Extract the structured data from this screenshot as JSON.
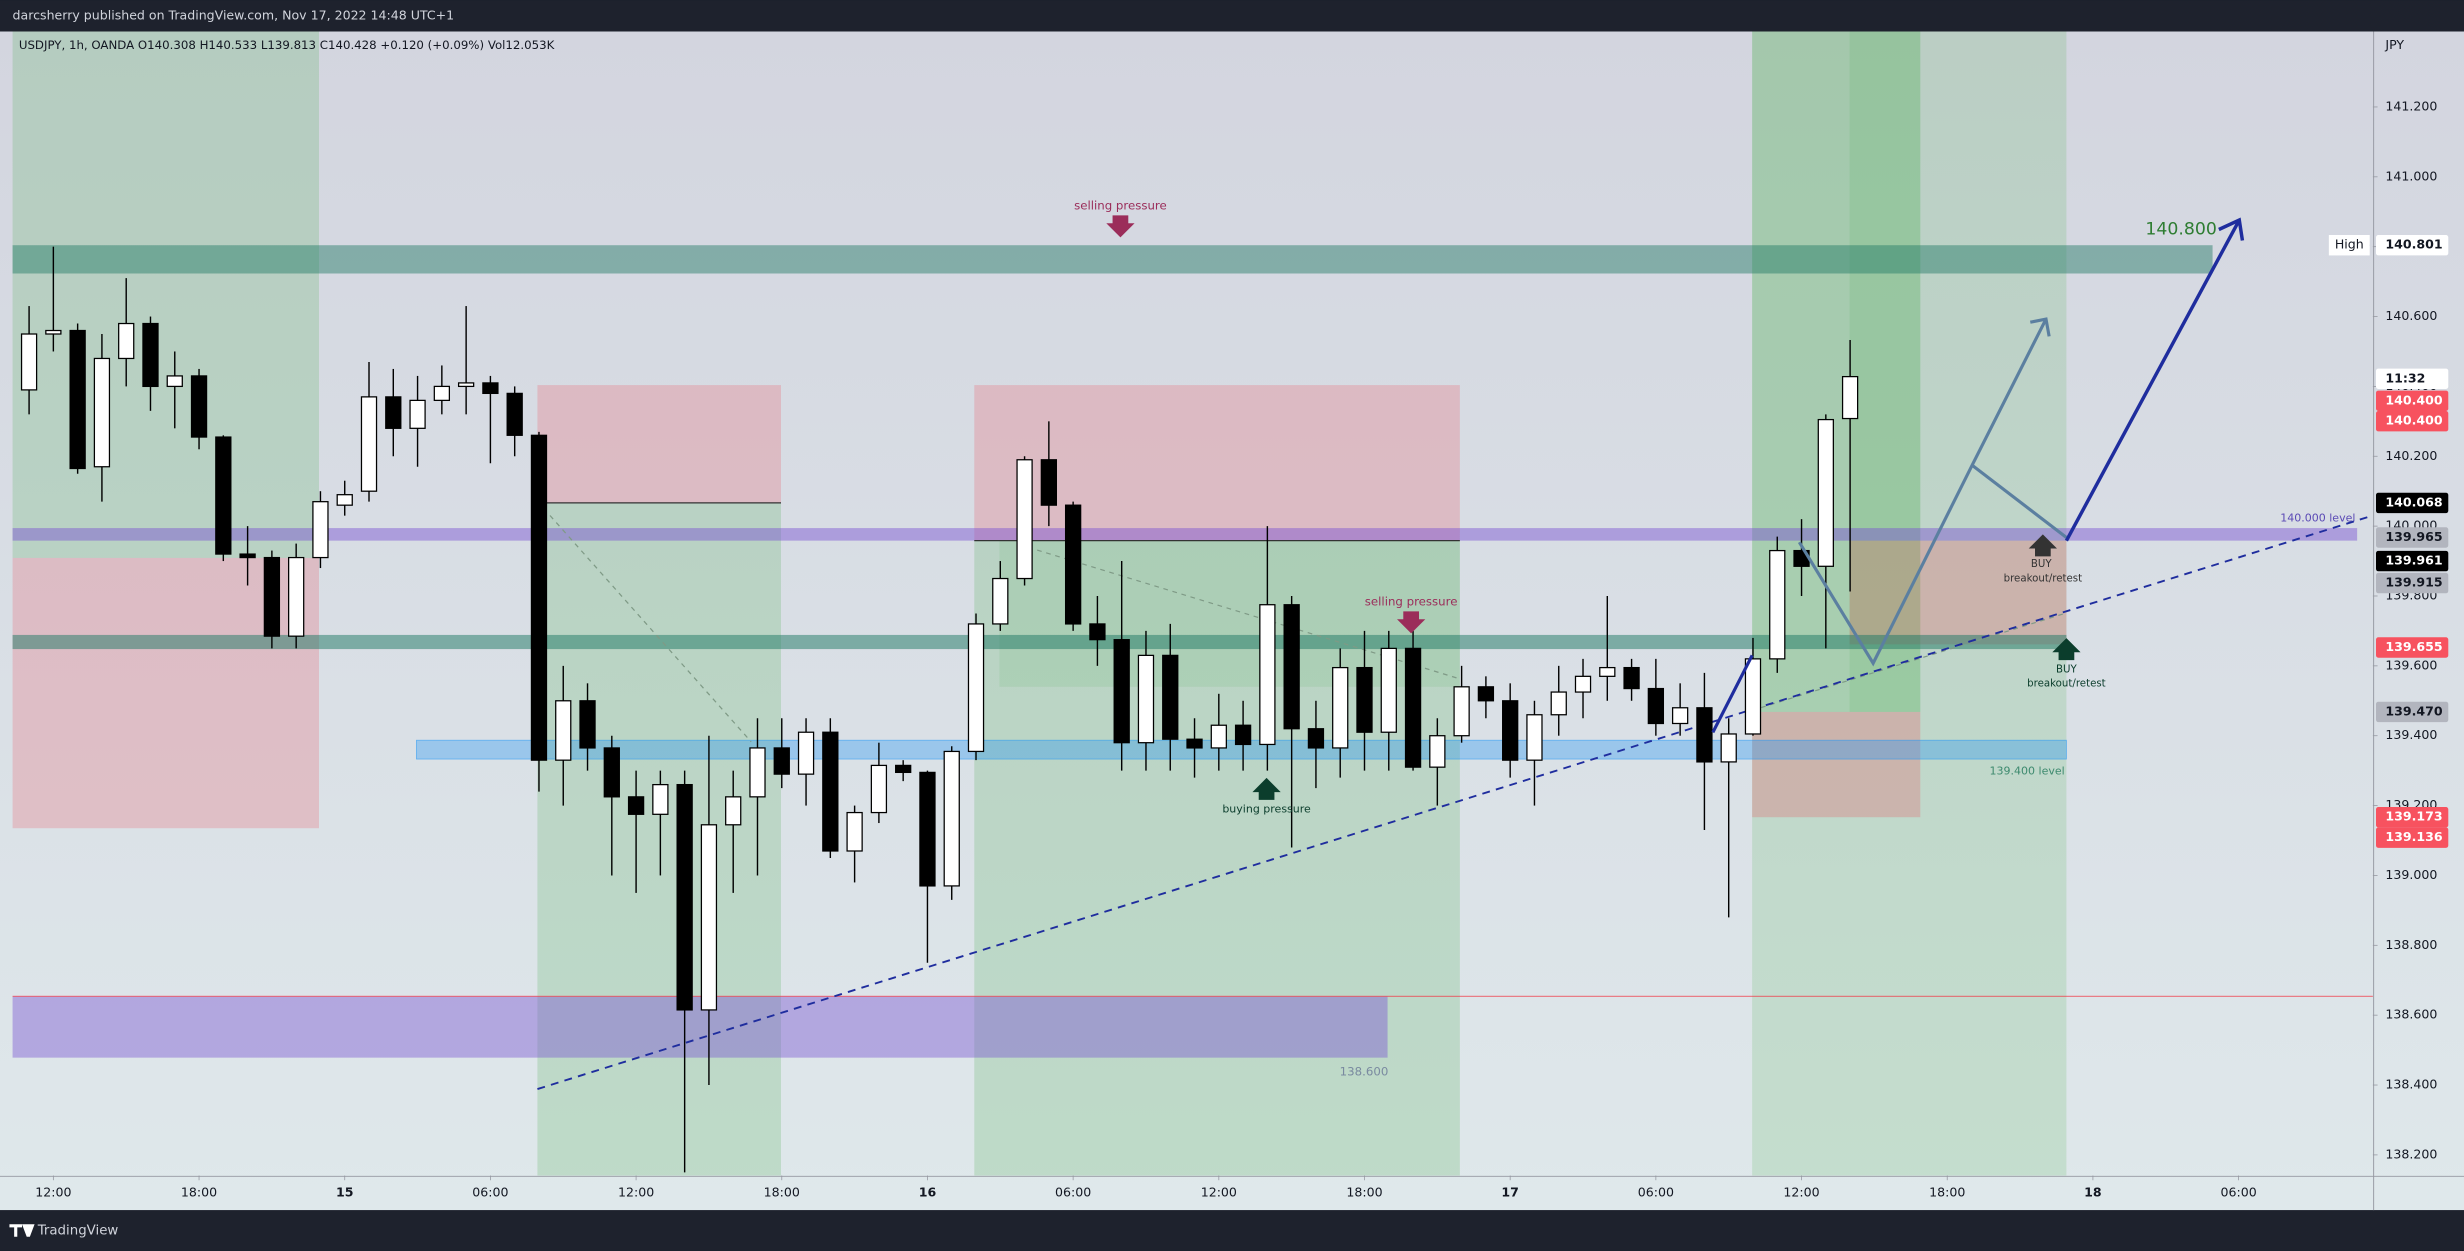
{
  "chart_data": {
    "type": "candlestick",
    "header": "darcsherry published on TradingView.com, Nov 17, 2022 14:48 UTC+1",
    "legend": "USDJPY, 1h, OANDA  O140.308  H140.533  L139.813  C140.428  +0.120 (+0.09%)  Vol12.053K",
    "currency": "JPY",
    "footer": "TradingView",
    "up_color": "#ffffff",
    "down_color": "#000000",
    "x": [
      -1,
      0,
      1,
      2,
      3,
      4,
      5,
      6,
      7,
      8,
      9,
      10,
      11,
      12,
      13,
      14,
      15,
      16,
      17,
      18,
      19,
      20,
      21,
      22,
      23,
      24,
      25,
      26,
      27,
      28,
      29,
      30,
      31,
      32,
      33,
      34,
      35,
      36,
      37,
      38,
      39,
      40,
      41,
      42,
      43,
      44,
      45,
      46,
      47,
      48,
      49,
      50,
      51,
      52,
      53,
      54,
      55,
      56,
      57,
      58,
      59,
      60,
      61,
      62,
      63,
      64,
      65,
      66,
      67,
      68,
      69,
      70,
      71,
      72,
      73,
      74
    ],
    "open": [
      140.39,
      140.55,
      140.56,
      140.17,
      140.48,
      140.58,
      140.4,
      140.43,
      140.255,
      139.92,
      139.91,
      139.685,
      139.91,
      140.06,
      140.1,
      140.37,
      140.28,
      140.36,
      140.4,
      140.41,
      140.38,
      140.26,
      139.33,
      139.5,
      139.365,
      139.225,
      139.175,
      139.26,
      138.615,
      139.145,
      139.225,
      139.365,
      139.29,
      139.41,
      139.07,
      139.18,
      139.315,
      139.295,
      138.97,
      139.355,
      139.72,
      139.85,
      140.19,
      140.06,
      139.72,
      139.675,
      139.38,
      139.63,
      139.39,
      139.365,
      139.43,
      139.375,
      139.775,
      139.42,
      139.365,
      139.595,
      139.41,
      139.65,
      139.31,
      139.4,
      139.54,
      139.5,
      139.33,
      139.46,
      139.525,
      139.57,
      139.595,
      139.535,
      139.435,
      139.48,
      139.325,
      139.405,
      139.62,
      139.93,
      139.885,
      140.308
    ],
    "high": [
      140.63,
      140.8,
      140.58,
      140.55,
      140.71,
      140.6,
      140.5,
      140.45,
      140.26,
      140.0,
      139.93,
      139.95,
      140.1,
      140.13,
      140.47,
      140.45,
      140.43,
      140.46,
      140.63,
      140.43,
      140.4,
      140.27,
      139.6,
      139.55,
      139.4,
      139.3,
      139.3,
      139.3,
      139.4,
      139.3,
      139.45,
      139.45,
      139.45,
      139.45,
      139.2,
      139.38,
      139.33,
      139.3,
      139.37,
      139.75,
      139.9,
      140.2,
      140.3,
      140.07,
      139.8,
      139.9,
      139.7,
      139.72,
      139.45,
      139.52,
      139.5,
      140.0,
      139.8,
      139.5,
      139.65,
      139.7,
      139.7,
      139.7,
      139.45,
      139.6,
      139.57,
      139.55,
      139.5,
      139.6,
      139.62,
      139.8,
      139.62,
      139.62,
      139.55,
      139.58,
      139.45,
      139.68,
      139.97,
      140.02,
      140.32,
      140.533
    ],
    "low": [
      140.32,
      140.5,
      140.15,
      140.07,
      140.4,
      140.33,
      140.28,
      140.22,
      139.9,
      139.83,
      139.65,
      139.65,
      139.88,
      140.03,
      140.07,
      140.2,
      140.17,
      140.32,
      140.32,
      140.18,
      140.2,
      139.24,
      139.2,
      139.3,
      139.0,
      138.95,
      139.0,
      138.15,
      138.4,
      138.95,
      139.0,
      139.25,
      139.2,
      139.05,
      138.98,
      139.15,
      139.27,
      138.75,
      138.93,
      139.33,
      139.7,
      139.83,
      140.0,
      139.7,
      139.6,
      139.3,
      139.3,
      139.3,
      139.28,
      139.3,
      139.3,
      139.3,
      139.08,
      139.25,
      139.28,
      139.3,
      139.3,
      139.3,
      139.2,
      139.38,
      139.45,
      139.28,
      139.2,
      139.4,
      139.45,
      139.5,
      139.5,
      139.4,
      139.4,
      139.13,
      138.88,
      139.4,
      139.58,
      139.8,
      139.65,
      139.813
    ],
    "close": [
      140.55,
      140.56,
      140.165,
      140.48,
      140.58,
      140.4,
      140.43,
      140.255,
      139.92,
      139.91,
      139.685,
      139.91,
      140.07,
      140.09,
      140.37,
      140.28,
      140.36,
      140.4,
      140.41,
      140.38,
      140.26,
      139.33,
      139.5,
      139.365,
      139.225,
      139.175,
      139.26,
      138.615,
      139.145,
      139.225,
      139.365,
      139.29,
      139.41,
      139.07,
      139.18,
      139.315,
      139.295,
      138.97,
      139.355,
      139.72,
      139.85,
      140.19,
      140.06,
      139.72,
      139.675,
      139.38,
      139.63,
      139.39,
      139.365,
      139.43,
      139.375,
      139.775,
      139.42,
      139.365,
      139.595,
      139.41,
      139.65,
      139.31,
      139.4,
      139.54,
      139.5,
      139.33,
      139.46,
      139.525,
      139.57,
      139.595,
      139.535,
      139.435,
      139.48,
      139.325,
      139.405,
      139.62,
      139.93,
      139.885,
      140.305,
      140.428
    ],
    "xlim": [
      -1.68,
      95.53
    ],
    "xticks": [
      {
        "value": 0,
        "label": "12:00"
      },
      {
        "value": 6,
        "label": "18:00"
      },
      {
        "value": 12,
        "label": "15"
      },
      {
        "value": 18,
        "label": "06:00"
      },
      {
        "value": 24,
        "label": "12:00"
      },
      {
        "value": 30,
        "label": "18:00"
      },
      {
        "value": 36,
        "label": "16"
      },
      {
        "value": 42,
        "label": "06:00"
      },
      {
        "value": 48,
        "label": "12:00"
      },
      {
        "value": 54,
        "label": "18:00"
      },
      {
        "value": 60,
        "label": "17"
      },
      {
        "value": 66,
        "label": "06:00"
      },
      {
        "value": 72,
        "label": "12:00"
      },
      {
        "value": 78,
        "label": "18:00"
      },
      {
        "value": 84,
        "label": "18"
      },
      {
        "value": 90,
        "label": "06:00"
      }
    ],
    "ylim": [
      138.141,
      141.416
    ],
    "yticks": [
      {
        "value": 141.2,
        "label": "141.200"
      },
      {
        "value": 141.0,
        "label": "141.000"
      },
      {
        "value": 140.8,
        "label": "140.800"
      },
      {
        "value": 140.6,
        "label": "140.600"
      },
      {
        "value": 140.4,
        "label": "140.400"
      },
      {
        "value": 140.2,
        "label": "140.200"
      },
      {
        "value": 140.0,
        "label": "140.000"
      },
      {
        "value": 139.8,
        "label": "139.800"
      },
      {
        "value": 139.6,
        "label": "139.600"
      },
      {
        "value": 139.4,
        "label": "139.400"
      },
      {
        "value": 139.2,
        "label": "139.200"
      },
      {
        "value": 139.0,
        "label": "139.000"
      },
      {
        "value": 138.8,
        "label": "138.800"
      },
      {
        "value": 138.6,
        "label": "138.600"
      },
      {
        "value": 138.4,
        "label": "138.400"
      },
      {
        "value": 138.2,
        "label": "138.200"
      }
    ],
    "grid": false,
    "price_tags": [
      {
        "label": "140.801",
        "color": "#ffffff"
      },
      {
        "label": "11:32",
        "color": "#ffffff"
      },
      {
        "label": "140.400",
        "color": "#f7525f"
      },
      {
        "label": "140.400",
        "color": "#f7525f"
      },
      {
        "label": "140.068",
        "color": "#000000"
      },
      {
        "label": "139.965",
        "color": "#b2b5be"
      },
      {
        "label": "139.961",
        "color": "#000000"
      },
      {
        "label": "139.915",
        "color": "#b2b5be"
      },
      {
        "label": "139.655",
        "color": "#f7525f"
      },
      {
        "label": "139.470",
        "color": "#b2b5be"
      },
      {
        "label": "139.173",
        "color": "#f7525f"
      },
      {
        "label": "139.136",
        "color": "#f7525f"
      }
    ],
    "annotations": [
      "selling pressure",
      "selling pressure",
      "buying pressure",
      "BUY",
      "breakout/retest",
      "BUY",
      "breakout/retest",
      "140.000 level",
      "139.400 level",
      "138.600",
      "140.800",
      "High"
    ]
  }
}
